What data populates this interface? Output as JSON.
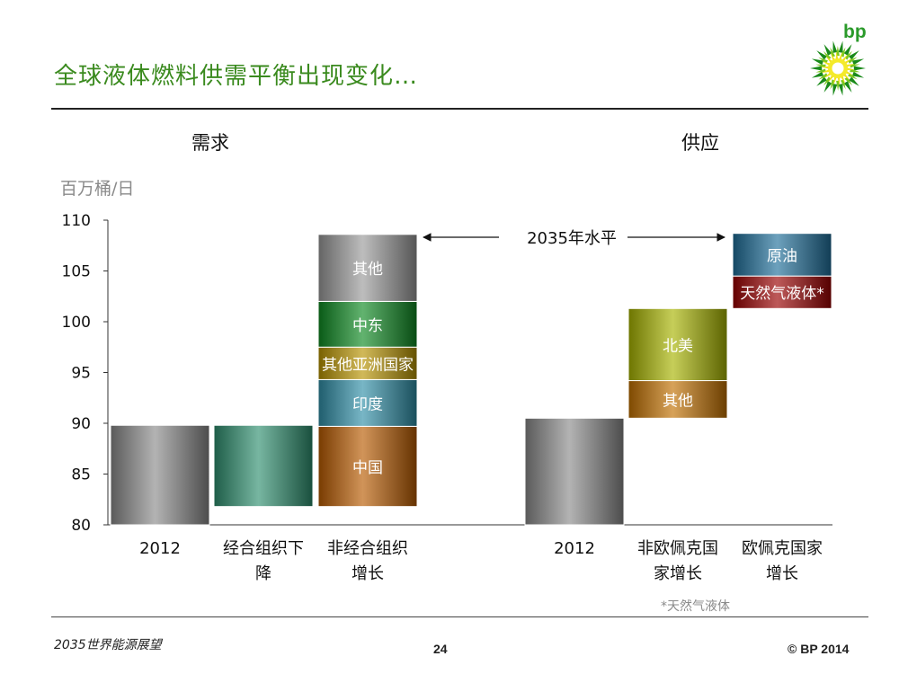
{
  "header": {
    "title": "全球液体燃料供需平衡出现变化…",
    "logo_text": "bp"
  },
  "footer": {
    "left": "2035世界能源展望",
    "page": "24",
    "copyright": "© BP 2014"
  },
  "colors": {
    "title": "#3a8a1e",
    "brand_green": "#2a9a2a"
  },
  "chart_data": {
    "type": "bar",
    "subtype": "waterfall",
    "ylabel": "百万桶/日",
    "ylim": [
      80,
      110
    ],
    "yticks": [
      80,
      85,
      90,
      95,
      100,
      105,
      110
    ],
    "groups": [
      {
        "label": "需求"
      },
      {
        "label": "供应"
      }
    ],
    "categories": [
      {
        "label": "2012",
        "group": 0
      },
      {
        "label": "经合组织下降",
        "group": 0
      },
      {
        "label": "非经合组织增长",
        "group": 0
      },
      {
        "label": "2012",
        "group": 1
      },
      {
        "label": "非欧佩克国家增长",
        "group": 1
      },
      {
        "label": "欧佩克国家增长",
        "group": 1
      }
    ],
    "bars": [
      {
        "category": 0,
        "segments": [
          {
            "label": "",
            "from": 80,
            "to": 89.8,
            "color": "#8a8a8a"
          }
        ]
      },
      {
        "category": 1,
        "segments": [
          {
            "label": "",
            "from": 81.8,
            "to": 89.8,
            "color": "#2e8f6e"
          }
        ]
      },
      {
        "category": 2,
        "segments": [
          {
            "label": "中国",
            "from": 81.8,
            "to": 89.7,
            "color": "#b85a00"
          },
          {
            "label": "印度",
            "from": 89.7,
            "to": 94.3,
            "color": "#2f8fa8"
          },
          {
            "label": "其他亚洲国家",
            "from": 94.3,
            "to": 97.5,
            "color": "#b89400"
          },
          {
            "label": "中东",
            "from": 97.5,
            "to": 102.0,
            "color": "#0e8a22"
          },
          {
            "label": "其他",
            "from": 102.0,
            "to": 108.6,
            "color": "#9a9a9a"
          }
        ]
      },
      {
        "category": 3,
        "segments": [
          {
            "label": "",
            "from": 80,
            "to": 90.5,
            "color": "#8a8a8a"
          }
        ]
      },
      {
        "category": 4,
        "segments": [
          {
            "label": "其他",
            "from": 90.5,
            "to": 94.2,
            "color": "#c27000"
          },
          {
            "label": "北美",
            "from": 94.2,
            "to": 101.3,
            "color": "#a8b400"
          }
        ]
      },
      {
        "category": 5,
        "segments": [
          {
            "label": "天然气液体*",
            "from": 101.3,
            "to": 104.5,
            "color": "#9a0000"
          },
          {
            "label": "原油",
            "from": 104.5,
            "to": 108.7,
            "color": "#1f6f9a"
          }
        ]
      }
    ],
    "annotations": {
      "level_label": "2035年水平",
      "footnote": "*天然气液体"
    }
  }
}
